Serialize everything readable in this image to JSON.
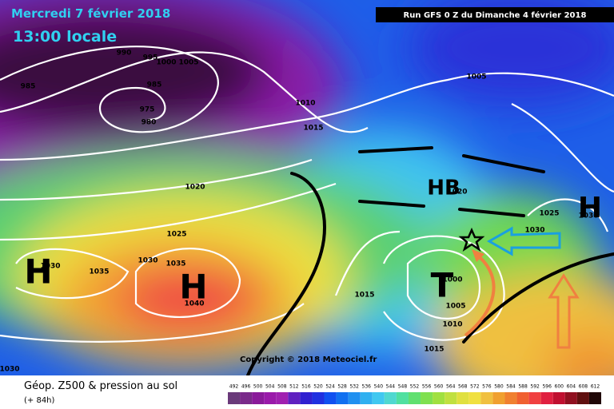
{
  "header": {
    "date": "Mercredi 7 février 2018",
    "time": "13:00 locale",
    "run": "Run GFS 0 Z du Dimanche 4 février 2018"
  },
  "isobar_labels": [
    "990",
    "995",
    "1000",
    "1005",
    "985",
    "985",
    "975",
    "980",
    "1010",
    "1015",
    "1005",
    "1020",
    "1025",
    "1030",
    "1035",
    "1030",
    "1035",
    "1040",
    "1030",
    "1015",
    "1000",
    "1005",
    "1010",
    "1015",
    "1025",
    "1030",
    "1030",
    "1020"
  ],
  "pressure_centers": [
    "H",
    "H",
    "H",
    "HB",
    "T"
  ],
  "copyright": "Copyright © 2018 Meteociel.fr",
  "legend": {
    "title": "Géop. Z500 & pression au sol",
    "lead": "(+ 84h)",
    "scale": [
      "492",
      "496",
      "500",
      "504",
      "508",
      "512",
      "516",
      "520",
      "524",
      "528",
      "532",
      "536",
      "540",
      "544",
      "548",
      "552",
      "556",
      "560",
      "564",
      "568",
      "572",
      "576",
      "580",
      "584",
      "588",
      "592",
      "596",
      "600",
      "604",
      "608",
      "612"
    ],
    "colors": [
      "#6a3a7a",
      "#7a2a8a",
      "#8a1a9a",
      "#9a1aaa",
      "#a020b0",
      "#6020c0",
      "#3020d0",
      "#2030e0",
      "#1050f0",
      "#1070f0",
      "#2090f0",
      "#30b0f0",
      "#40c8f0",
      "#50d8d0",
      "#50e0a0",
      "#60e070",
      "#80e050",
      "#a0e040",
      "#c0e040",
      "#e0e040",
      "#f0e040",
      "#f0c040",
      "#f0a030",
      "#f08030",
      "#f06030",
      "#f04040",
      "#e02040",
      "#c01030",
      "#901020",
      "#601010",
      "#200808"
    ]
  }
}
